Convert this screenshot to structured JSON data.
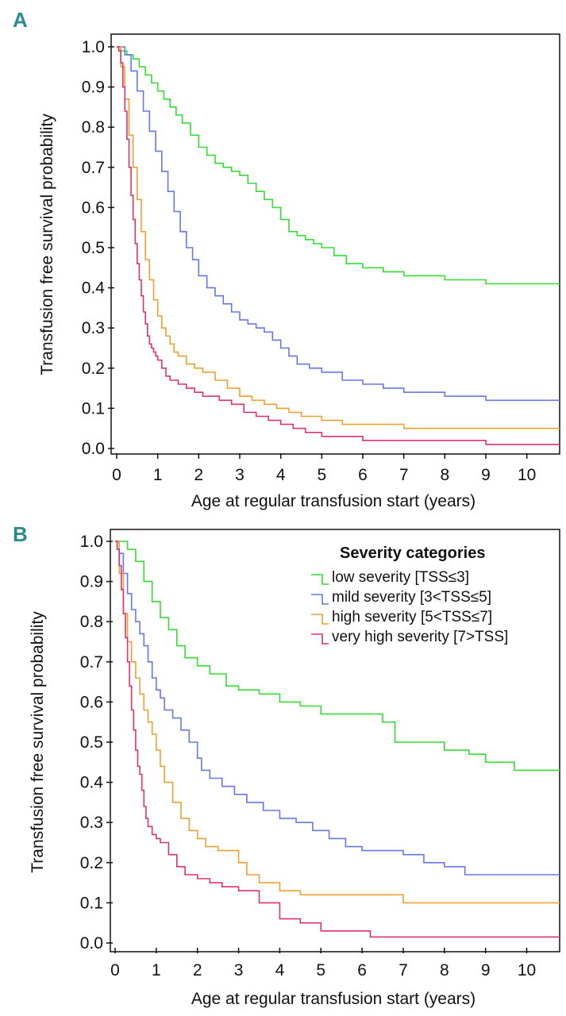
{
  "chart_data": [
    {
      "panel": "A",
      "type": "line",
      "xlabel": "Age at regular transfusion start (years)",
      "ylabel": "Transfusion free survival probability",
      "xlim": [
        0,
        10.8
      ],
      "ylim": [
        0.0,
        1.0
      ],
      "xticks": [
        "0",
        "1",
        "2",
        "3",
        "4",
        "5",
        "6",
        "7",
        "8",
        "9",
        "10"
      ],
      "yticks": [
        "0.0",
        "0.1",
        "0.2",
        "0.3",
        "0.4",
        "0.5",
        "0.6",
        "0.7",
        "0.8",
        "0.9",
        "1.0"
      ],
      "series": [
        {
          "name": "low severity [TSS≤3]",
          "color": "#33dd33",
          "x": [
            0,
            0.1,
            0.25,
            0.4,
            0.55,
            0.7,
            0.85,
            1.0,
            1.15,
            1.3,
            1.45,
            1.6,
            1.8,
            2.0,
            2.2,
            2.4,
            2.6,
            2.8,
            3.0,
            3.2,
            3.4,
            3.6,
            3.8,
            4.0,
            4.2,
            4.4,
            4.6,
            4.8,
            5.0,
            5.3,
            5.6,
            6.0,
            6.5,
            7.0,
            7.5,
            8.0,
            8.5,
            9.0,
            9.5,
            10.8
          ],
          "y": [
            1.0,
            0.99,
            0.98,
            0.97,
            0.95,
            0.93,
            0.91,
            0.89,
            0.87,
            0.85,
            0.83,
            0.81,
            0.78,
            0.75,
            0.73,
            0.71,
            0.7,
            0.69,
            0.68,
            0.66,
            0.64,
            0.62,
            0.6,
            0.57,
            0.54,
            0.53,
            0.52,
            0.51,
            0.5,
            0.48,
            0.46,
            0.45,
            0.44,
            0.43,
            0.43,
            0.42,
            0.42,
            0.41,
            0.41,
            0.41
          ]
        },
        {
          "name": "mild severity [3<TSS≤5]",
          "color": "#6677ee",
          "x": [
            0,
            0.1,
            0.2,
            0.35,
            0.5,
            0.65,
            0.8,
            0.95,
            1.1,
            1.25,
            1.4,
            1.55,
            1.7,
            1.85,
            2.0,
            2.2,
            2.4,
            2.6,
            2.8,
            3.0,
            3.2,
            3.4,
            3.6,
            3.8,
            4.0,
            4.2,
            4.4,
            4.7,
            5.0,
            5.5,
            6.0,
            6.5,
            7.0,
            7.5,
            8.0,
            9.0,
            10.8
          ],
          "y": [
            1.0,
            1.0,
            0.98,
            0.94,
            0.89,
            0.84,
            0.79,
            0.74,
            0.69,
            0.64,
            0.59,
            0.54,
            0.5,
            0.47,
            0.43,
            0.4,
            0.38,
            0.36,
            0.34,
            0.32,
            0.31,
            0.3,
            0.29,
            0.27,
            0.25,
            0.23,
            0.21,
            0.2,
            0.19,
            0.17,
            0.16,
            0.15,
            0.14,
            0.14,
            0.13,
            0.12,
            0.12
          ]
        },
        {
          "name": "high severity [5<TSS≤7]",
          "color": "#f0a030",
          "x": [
            0,
            0.1,
            0.2,
            0.3,
            0.4,
            0.5,
            0.6,
            0.7,
            0.8,
            0.9,
            1.0,
            1.1,
            1.2,
            1.3,
            1.4,
            1.5,
            1.7,
            1.9,
            2.1,
            2.4,
            2.7,
            3.0,
            3.3,
            3.6,
            3.9,
            4.2,
            4.5,
            5.0,
            5.5,
            6.0,
            7.0,
            8.0,
            9.0,
            10.0,
            10.8
          ],
          "y": [
            1.0,
            0.95,
            0.87,
            0.78,
            0.7,
            0.62,
            0.54,
            0.47,
            0.42,
            0.37,
            0.33,
            0.3,
            0.28,
            0.26,
            0.24,
            0.23,
            0.21,
            0.2,
            0.19,
            0.17,
            0.15,
            0.13,
            0.12,
            0.11,
            0.1,
            0.09,
            0.08,
            0.07,
            0.06,
            0.06,
            0.05,
            0.05,
            0.05,
            0.05,
            0.05
          ]
        },
        {
          "name": "very high severity [7>TSS]",
          "color": "#dd3366",
          "x": [
            0,
            0.05,
            0.1,
            0.15,
            0.2,
            0.25,
            0.3,
            0.35,
            0.4,
            0.45,
            0.5,
            0.55,
            0.6,
            0.65,
            0.7,
            0.75,
            0.8,
            0.85,
            0.9,
            0.95,
            1.0,
            1.1,
            1.2,
            1.3,
            1.5,
            1.7,
            1.9,
            2.1,
            2.3,
            2.5,
            2.8,
            3.1,
            3.4,
            3.7,
            4.0,
            4.3,
            4.6,
            5.0,
            5.5,
            6.0,
            7.0,
            8.0,
            9.0,
            10.0,
            10.8
          ],
          "y": [
            1.0,
            0.99,
            0.96,
            0.9,
            0.84,
            0.77,
            0.7,
            0.63,
            0.57,
            0.51,
            0.46,
            0.42,
            0.38,
            0.34,
            0.31,
            0.28,
            0.26,
            0.25,
            0.24,
            0.23,
            0.22,
            0.2,
            0.18,
            0.17,
            0.16,
            0.15,
            0.14,
            0.13,
            0.13,
            0.12,
            0.11,
            0.09,
            0.08,
            0.07,
            0.06,
            0.05,
            0.04,
            0.03,
            0.03,
            0.02,
            0.02,
            0.02,
            0.01,
            0.01,
            0.01
          ]
        }
      ]
    },
    {
      "panel": "B",
      "type": "line",
      "xlabel": "Age at regular transfusion start (years)",
      "ylabel": "Transfusion free survival probability",
      "xlim": [
        0,
        10.8
      ],
      "ylim": [
        0.0,
        1.0
      ],
      "xticks": [
        "0",
        "1",
        "2",
        "3",
        "4",
        "5",
        "6",
        "7",
        "8",
        "9",
        "10"
      ],
      "yticks": [
        "0.0",
        "0.1",
        "0.2",
        "0.3",
        "0.4",
        "0.5",
        "0.6",
        "0.7",
        "0.8",
        "0.9",
        "1.0"
      ],
      "legend": {
        "title": "Severity categories",
        "position": "top-right"
      },
      "series": [
        {
          "name": "low severity [TSS≤3]",
          "color": "#33dd33",
          "x": [
            0,
            0.1,
            0.3,
            0.5,
            0.7,
            0.9,
            1.1,
            1.3,
            1.5,
            1.7,
            2.0,
            2.3,
            2.7,
            3.0,
            3.5,
            4.0,
            4.5,
            5.0,
            5.5,
            6.0,
            6.5,
            6.8,
            7.5,
            8.0,
            8.6,
            9.0,
            9.7,
            10.8
          ],
          "y": [
            1.0,
            1.0,
            0.98,
            0.95,
            0.9,
            0.85,
            0.81,
            0.78,
            0.74,
            0.71,
            0.69,
            0.67,
            0.64,
            0.63,
            0.62,
            0.6,
            0.59,
            0.57,
            0.57,
            0.57,
            0.55,
            0.5,
            0.5,
            0.48,
            0.47,
            0.45,
            0.43,
            0.43
          ]
        },
        {
          "name": "mild severity [3<TSS≤5]",
          "color": "#6677ee",
          "x": [
            0,
            0.1,
            0.2,
            0.3,
            0.4,
            0.5,
            0.6,
            0.7,
            0.8,
            0.9,
            1.0,
            1.1,
            1.2,
            1.4,
            1.6,
            1.8,
            2.0,
            2.1,
            2.3,
            2.6,
            2.9,
            3.2,
            3.6,
            4.0,
            4.4,
            4.8,
            5.2,
            5.6,
            6.0,
            7.0,
            7.5,
            8.0,
            8.5,
            9.0,
            10.8
          ],
          "y": [
            1.0,
            0.97,
            0.92,
            0.87,
            0.83,
            0.8,
            0.77,
            0.74,
            0.7,
            0.66,
            0.63,
            0.61,
            0.58,
            0.56,
            0.53,
            0.5,
            0.46,
            0.43,
            0.41,
            0.39,
            0.37,
            0.35,
            0.33,
            0.31,
            0.3,
            0.28,
            0.26,
            0.24,
            0.23,
            0.22,
            0.2,
            0.19,
            0.17,
            0.17,
            0.17
          ]
        },
        {
          "name": "high severity [5<TSS≤7]",
          "color": "#f0a030",
          "x": [
            0,
            0.1,
            0.2,
            0.3,
            0.4,
            0.5,
            0.6,
            0.7,
            0.8,
            0.9,
            1.0,
            1.1,
            1.2,
            1.4,
            1.6,
            1.8,
            2.0,
            2.2,
            2.5,
            3.0,
            3.2,
            3.5,
            4.0,
            4.5,
            5.0,
            5.5,
            6.0,
            7.0,
            8.0,
            9.0,
            10.0,
            10.8
          ],
          "y": [
            1.0,
            0.92,
            0.82,
            0.75,
            0.7,
            0.66,
            0.62,
            0.58,
            0.55,
            0.52,
            0.48,
            0.44,
            0.4,
            0.35,
            0.31,
            0.28,
            0.26,
            0.24,
            0.23,
            0.2,
            0.17,
            0.15,
            0.13,
            0.12,
            0.12,
            0.12,
            0.12,
            0.1,
            0.1,
            0.1,
            0.1,
            0.1
          ]
        },
        {
          "name": "very high severity [7>TSS]",
          "color": "#dd3366",
          "x": [
            0,
            0.05,
            0.1,
            0.15,
            0.2,
            0.25,
            0.3,
            0.35,
            0.4,
            0.45,
            0.5,
            0.55,
            0.6,
            0.65,
            0.7,
            0.75,
            0.8,
            0.9,
            1.0,
            1.1,
            1.3,
            1.5,
            1.7,
            2.0,
            2.3,
            2.6,
            3.0,
            3.5,
            4.0,
            4.5,
            5.0,
            5.5,
            6.0,
            6.2,
            7.0,
            8.0,
            9.0,
            10.0,
            10.8
          ],
          "y": [
            1.0,
            0.98,
            0.94,
            0.88,
            0.82,
            0.76,
            0.7,
            0.64,
            0.58,
            0.53,
            0.48,
            0.44,
            0.42,
            0.38,
            0.34,
            0.31,
            0.29,
            0.27,
            0.26,
            0.25,
            0.22,
            0.19,
            0.17,
            0.16,
            0.15,
            0.14,
            0.13,
            0.1,
            0.06,
            0.05,
            0.03,
            0.03,
            0.03,
            0.015,
            0.015,
            0.015,
            0.015,
            0.015,
            0.015
          ]
        }
      ]
    }
  ],
  "panels": {
    "a": {
      "letter": "A"
    },
    "b": {
      "letter": "B"
    }
  }
}
